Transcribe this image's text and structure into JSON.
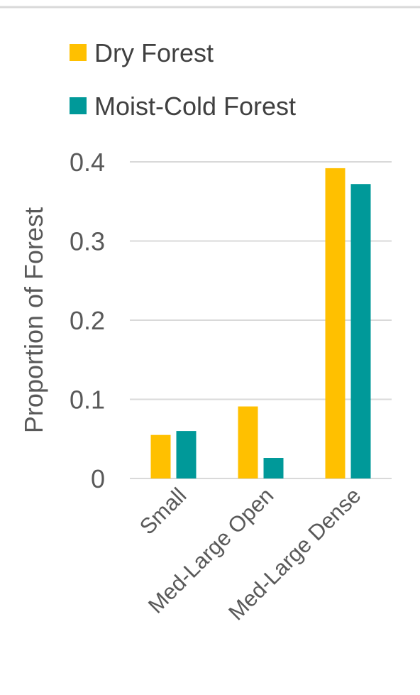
{
  "chart_data": {
    "type": "bar",
    "title": "",
    "xlabel": "",
    "ylabel": "Proportion of Forest",
    "categories": [
      "Small",
      "Med-Large Open",
      "Med-Large Dense"
    ],
    "series": [
      {
        "name": "Dry Forest",
        "color": "#FFC000",
        "values": [
          0.055,
          0.091,
          0.392
        ]
      },
      {
        "name": "Moist-Cold Forest",
        "color": "#009999",
        "values": [
          0.06,
          0.026,
          0.372
        ]
      }
    ],
    "ylim": [
      0,
      0.4
    ],
    "yticks": [
      0,
      0.1,
      0.2,
      0.3,
      0.4
    ],
    "ytick_labels": [
      "0",
      "0.1",
      "0.2",
      "0.3",
      "0.4"
    ],
    "grid": true,
    "legend_position": "top-left",
    "colors": {
      "gridline": "#D9D9D9",
      "text": "#595959",
      "top_border": "#D9D9D9"
    }
  }
}
